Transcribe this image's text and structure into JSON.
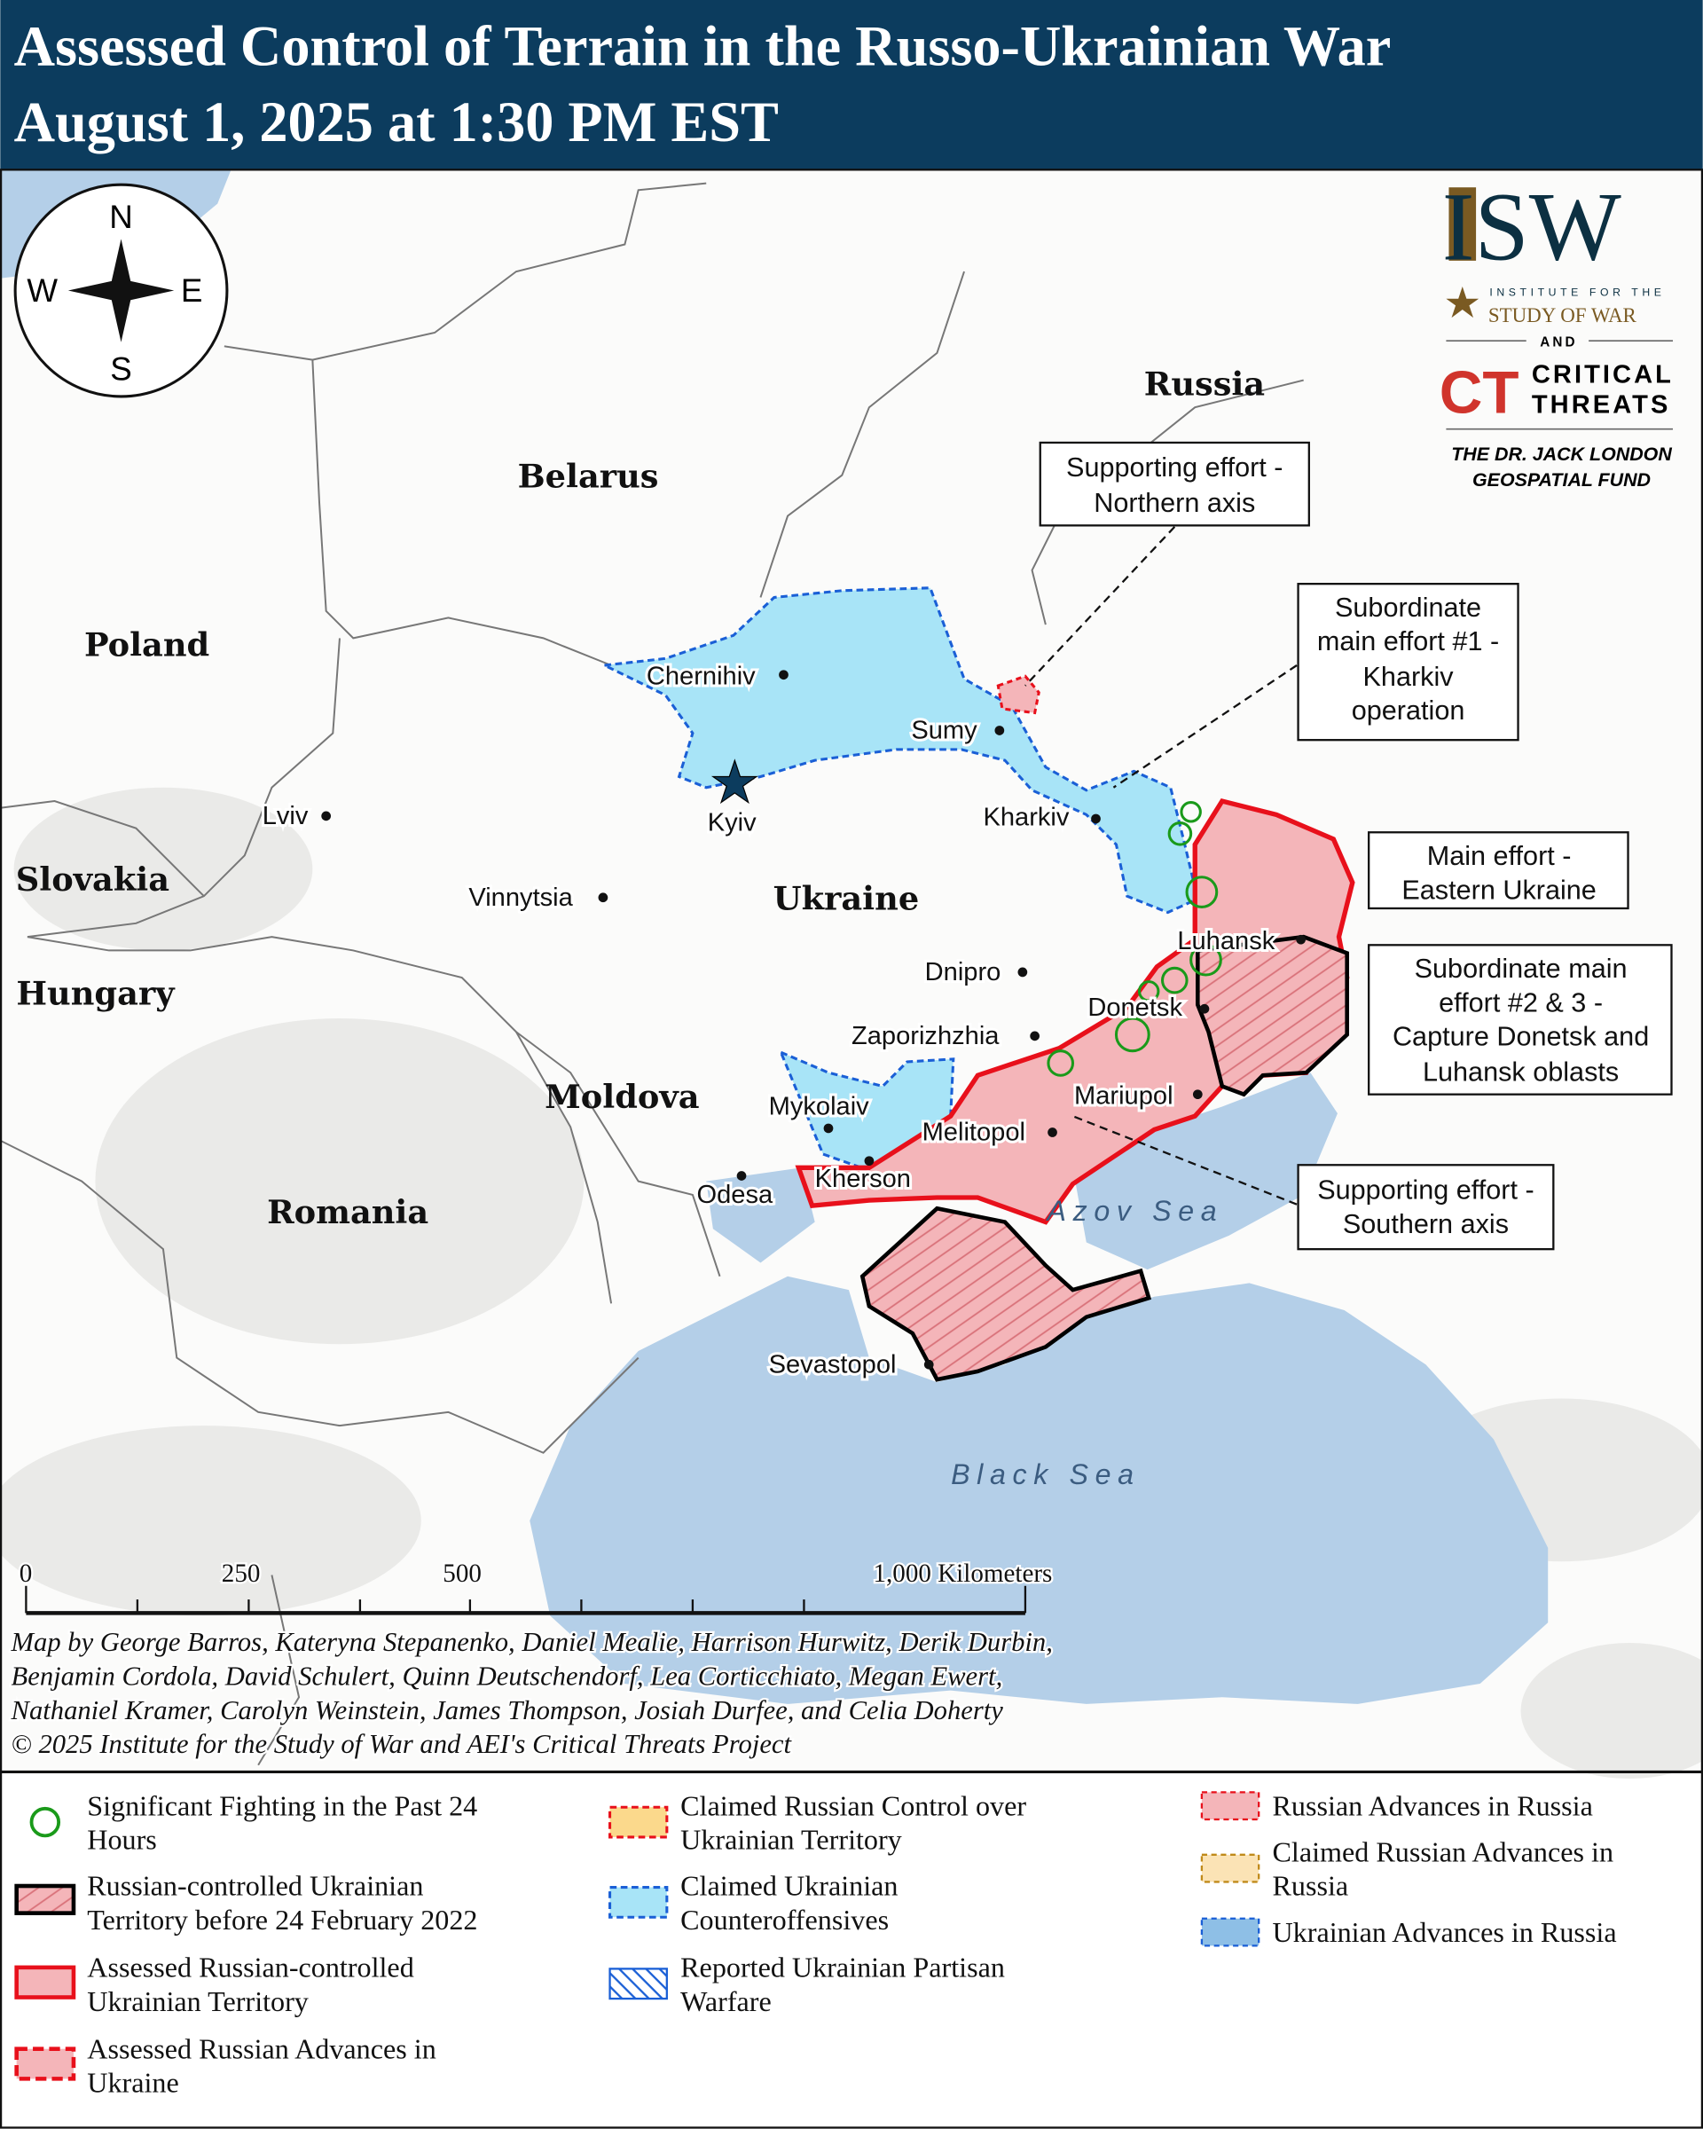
{
  "header": {
    "title_line1": "Assessed Control of Terrain in the Russo-Ukrainian War",
    "title_line2": "August 1, 2025 at 1:30 PM EST"
  },
  "colors": {
    "header_bg": "#0c3c5e",
    "water": "#b4cfe8",
    "russian_control": "#f4b5b9",
    "russian_border": "#e8101b",
    "ukrainian_counteroffensive": "#a8e4f7",
    "ukrainian_border": "#1a5fd6",
    "fighting": "#1a9a1a"
  },
  "compass": {
    "n": "N",
    "s": "S",
    "e": "E",
    "w": "W"
  },
  "logo": {
    "isw": "ISW",
    "isw_sub1": "INSTITUTE FOR THE",
    "isw_sub2": "STUDY OF WAR",
    "and": "AND",
    "ct_mark": "CT",
    "ct_line1": "CRITICAL",
    "ct_line2": "THREATS",
    "fund_line1": "THE DR. JACK LONDON",
    "fund_line2": "GEOSPATIAL FUND"
  },
  "countries": {
    "russia": "Russia",
    "belarus": "Belarus",
    "poland": "Poland",
    "slovakia": "Slovakia",
    "hungary": "Hungary",
    "moldova": "Moldova",
    "romania": "Romania",
    "ukraine": "Ukraine"
  },
  "seas": {
    "azov": "Azov Sea",
    "black": "Black Sea"
  },
  "cities": {
    "chernihiv": "Chernihiv",
    "sumy": "Sumy",
    "kyiv": "Kyiv",
    "kharkiv": "Kharkiv",
    "lviv": "Lviv",
    "vinnytsia": "Vinnytsia",
    "dnipro": "Dnipro",
    "luhansk": "Luhansk",
    "donetsk": "Donetsk",
    "zaporizhzhia": "Zaporizhzhia",
    "mariupol": "Mariupol",
    "mykolaiv": "Mykolaiv",
    "melitopol": "Melitopol",
    "kherson": "Kherson",
    "odesa": "Odesa",
    "sevastopol": "Sevastopol"
  },
  "callouts": {
    "northern": [
      "Supporting effort -",
      "Northern axis"
    ],
    "kharkiv": [
      "Subordinate",
      "main effort #1 -",
      "Kharkiv",
      "operation"
    ],
    "eastern": [
      "Main effort -",
      "Eastern Ukraine"
    ],
    "donetsk": [
      "Subordinate main",
      "effort #2 & 3 -",
      "Capture Donetsk and",
      "Luhansk oblasts"
    ],
    "southern": [
      "Supporting effort -",
      "Southern axis"
    ]
  },
  "scale_bar": {
    "t0": "0",
    "t250": "250",
    "t500": "500",
    "t1000": "1,000 Kilometers"
  },
  "credits": [
    "Map by George Barros, Kateryna Stepanenko, Daniel Mealie, Harrison Hurwitz, Derik Durbin,",
    "Benjamin Cordola, David Schulert, Quinn Deutschendorf, Lea Corticchiato, Megan Ewert,",
    "Nathaniel Kramer, Carolyn Weinstein, James Thompson, Josiah Durfee, and Celia Doherty",
    "© 2025 Institute for the Study of War and AEI's Critical Threats Project"
  ],
  "legend": {
    "fighting": [
      "Significant Fighting in the Past 24",
      "Hours"
    ],
    "pre2022": [
      "Russian-controlled Ukrainian",
      "Territory before 24 February 2022"
    ],
    "assessed_control": [
      "Assessed Russian-controlled",
      "Ukrainian Territory"
    ],
    "assessed_advances": [
      "Assessed Russian Advances in",
      "Ukraine"
    ],
    "claimed_control": [
      "Claimed Russian Control over",
      "Ukrainian Territory"
    ],
    "claimed_counter": [
      "Claimed Ukrainian",
      "Counteroffensives"
    ],
    "partisan": [
      "Reported Ukrainian Partisan",
      "Warfare"
    ],
    "ru_adv_russia": [
      "Russian Advances in Russia"
    ],
    "claimed_ru_adv_russia": [
      "Claimed Russian Advances in",
      "Russia"
    ],
    "ua_adv_russia": [
      "Ukrainian Advances in Russia"
    ]
  }
}
